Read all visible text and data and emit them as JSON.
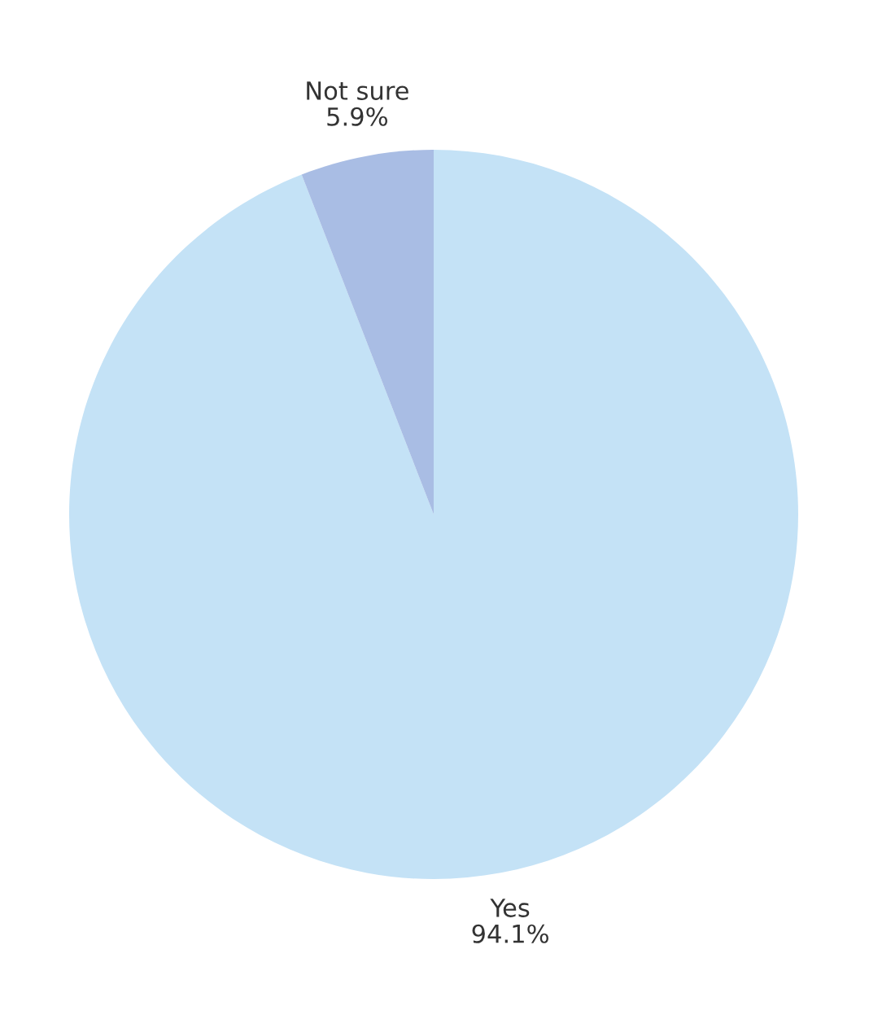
{
  "chart_data": {
    "type": "pie",
    "categories": [
      "Yes",
      "Not sure"
    ],
    "values": [
      94.1,
      5.9
    ],
    "colors": [
      "#c4e2f6",
      "#a9bde4"
    ],
    "value_labels": [
      "94.1%",
      "5.9%"
    ]
  }
}
